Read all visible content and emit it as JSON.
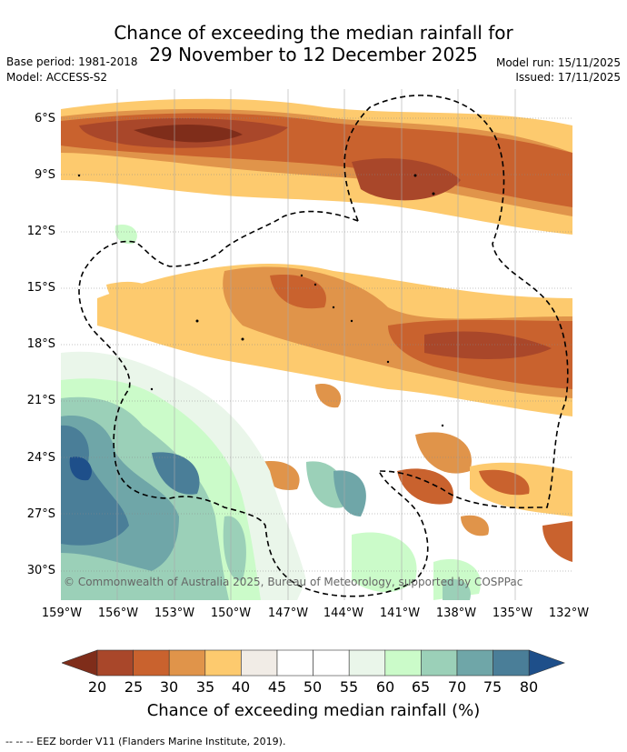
{
  "title": {
    "line1": "Chance of exceeding the median rainfall for",
    "line2": "29 November to 12 December 2025"
  },
  "meta": {
    "base_period": "Base period: 1981-2018",
    "model": "Model: ACCESS-S2",
    "model_run": "Model run: 15/11/2025",
    "issued": "Issued: 17/11/2025"
  },
  "map": {
    "lat_labels": [
      "6°S",
      "9°S",
      "12°S",
      "15°S",
      "18°S",
      "21°S",
      "24°S",
      "27°S",
      "30°S"
    ],
    "lat_values": [
      6,
      9,
      12,
      15,
      18,
      21,
      24,
      27,
      30
    ],
    "lon_labels": [
      "159°W",
      "156°W",
      "153°W",
      "150°W",
      "147°W",
      "144°W",
      "141°W",
      "138°W",
      "135°W",
      "132°W"
    ],
    "lon_values": [
      159,
      156,
      153,
      150,
      147,
      144,
      141,
      138,
      135,
      132
    ],
    "lat_range": [
      4.5,
      31.5
    ],
    "lon_range": [
      159,
      132
    ],
    "copyright": "© Commonwealth of Australia 2025, Bureau of Meteorology, supported by COSPPac"
  },
  "colorbar": {
    "ticks": [
      "20",
      "25",
      "30",
      "35",
      "40",
      "45",
      "50",
      "55",
      "60",
      "65",
      "70",
      "75",
      "80"
    ],
    "colors": [
      "#7f2d1a",
      "#a9472a",
      "#c9622e",
      "#e0944a",
      "#fdca6e",
      "#f1ece6",
      "#ffffff",
      "#ffffff",
      "#eaf6ea",
      "#cbfbc9",
      "#9bd0b8",
      "#6fa6a8",
      "#4a7e98",
      "#1e4f8a"
    ],
    "title": "Chance of exceeding median rainfall (%)"
  },
  "footnote": "--  --  -- EEZ border V11 (Flanders Marine Institute, 2019)."
}
